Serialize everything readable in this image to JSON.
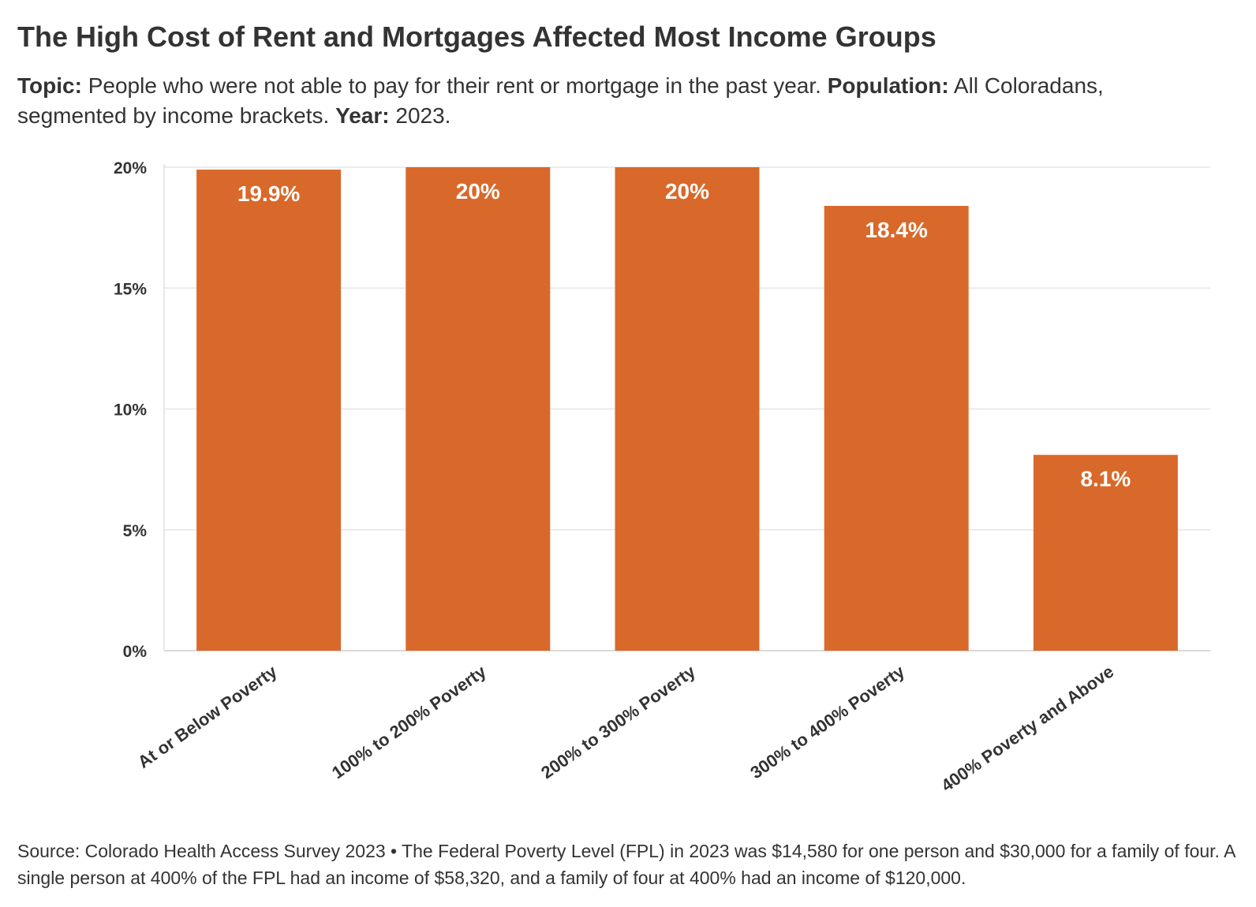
{
  "title": "The High Cost of Rent and Mortgages Affected Most Income Groups",
  "subtitle": {
    "topic_label": "Topic:",
    "topic_text": "People who were not able to pay for their rent or mortgage in the past year.",
    "population_label": "Population:",
    "population_text": "All Coloradans, segmented by income brackets.",
    "year_label": "Year:",
    "year_text": "2023."
  },
  "chart_data": {
    "type": "bar",
    "categories": [
      "At or Below Poverty",
      "100% to 200% Poverty",
      "200% to 300% Poverty",
      "300% to 400% Poverty",
      "400% Poverty and Above"
    ],
    "values": [
      19.9,
      20,
      20,
      18.4,
      8.1
    ],
    "value_labels": [
      "19.9%",
      "20%",
      "20%",
      "18.4%",
      "8.1%"
    ],
    "ylim": [
      0,
      20
    ],
    "yticks": [
      0,
      5,
      10,
      15,
      20
    ],
    "ytick_labels": [
      "0%",
      "5%",
      "10%",
      "15%",
      "20%"
    ],
    "bar_color": "#D9692A",
    "grid": true
  },
  "footer": "Source: Colorado Health Access Survey 2023 • The Federal Poverty Level (FPL) in 2023 was $14,580 for one person and $30,000 for a family of four. A single person at 400% of the FPL had an income of $58,320, and a family of four at 400% had an income of $120,000."
}
